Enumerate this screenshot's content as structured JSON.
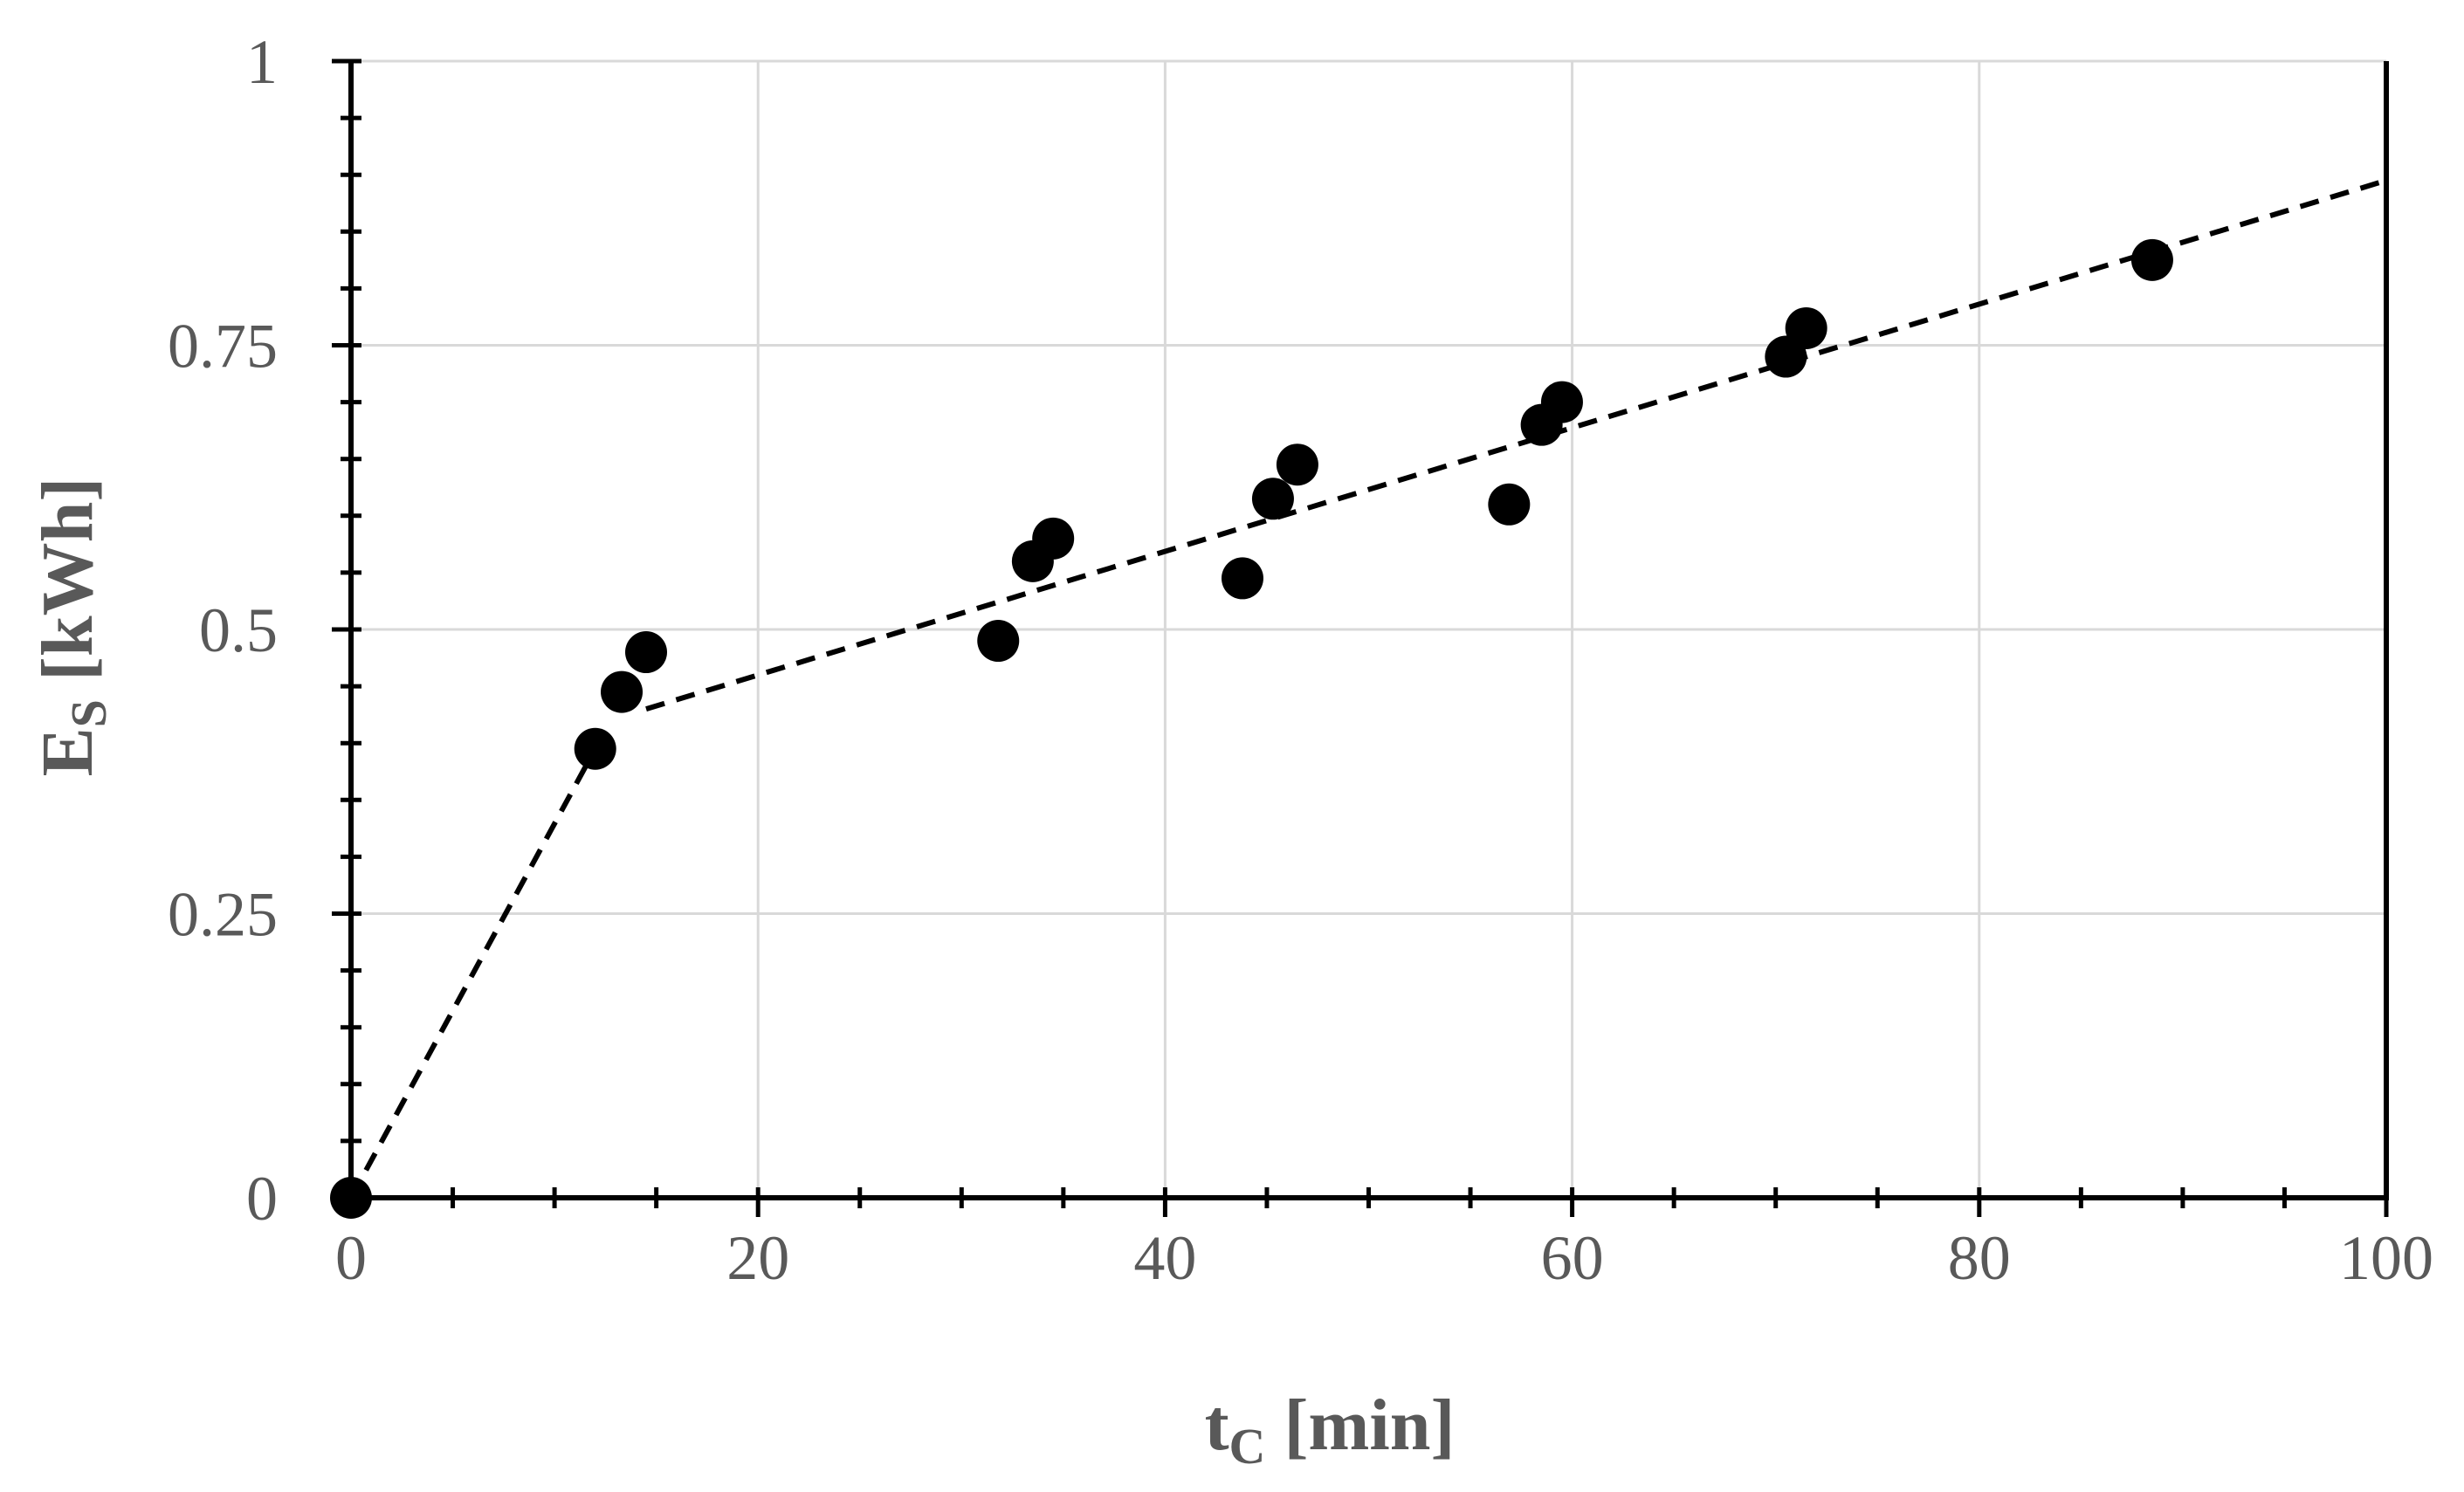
{
  "chart_data": {
    "type": "scatter",
    "xlabel": {
      "main": "t",
      "sub": "C",
      "unit": " [min]"
    },
    "ylabel": {
      "main": "E",
      "sub": "S",
      "unit": " [kWh]"
    },
    "xlim": [
      0,
      100
    ],
    "ylim": [
      0,
      1
    ],
    "x_ticks": [
      0,
      20,
      40,
      60,
      80,
      100
    ],
    "x_tick_labels": [
      "0",
      "20",
      "40",
      "60",
      "80",
      "100"
    ],
    "y_ticks": [
      0,
      0.25,
      0.5,
      0.75,
      1
    ],
    "y_tick_labels": [
      "0",
      "0.25",
      "0.5",
      "0.75",
      "1"
    ],
    "x_minor_step": 5,
    "y_minor_step": 0.05,
    "grid": true,
    "legend": "none",
    "colors": {
      "points": "#000000",
      "trend": "#000000",
      "grid": "#d9d9d9",
      "axis": "#000000",
      "text": "#595959"
    },
    "points": [
      {
        "x": 0,
        "y": 0
      },
      {
        "x": 12,
        "y": 0.395
      },
      {
        "x": 13.3,
        "y": 0.445
      },
      {
        "x": 14.5,
        "y": 0.48
      },
      {
        "x": 31.8,
        "y": 0.49
      },
      {
        "x": 33.5,
        "y": 0.56
      },
      {
        "x": 34.5,
        "y": 0.58
      },
      {
        "x": 43.8,
        "y": 0.545
      },
      {
        "x": 45.3,
        "y": 0.615
      },
      {
        "x": 46.5,
        "y": 0.645
      },
      {
        "x": 56.9,
        "y": 0.61
      },
      {
        "x": 58.5,
        "y": 0.68
      },
      {
        "x": 59.5,
        "y": 0.7
      },
      {
        "x": 70.5,
        "y": 0.74
      },
      {
        "x": 71.5,
        "y": 0.765
      },
      {
        "x": 88.5,
        "y": 0.825
      }
    ],
    "trend_lines": [
      {
        "style": "dashed",
        "x": [
          0,
          12
        ],
        "y": [
          0,
          0.395
        ]
      },
      {
        "style": "dashed",
        "x": [
          14.5,
          100
        ],
        "y": [
          0.43,
          0.895
        ]
      }
    ]
  }
}
